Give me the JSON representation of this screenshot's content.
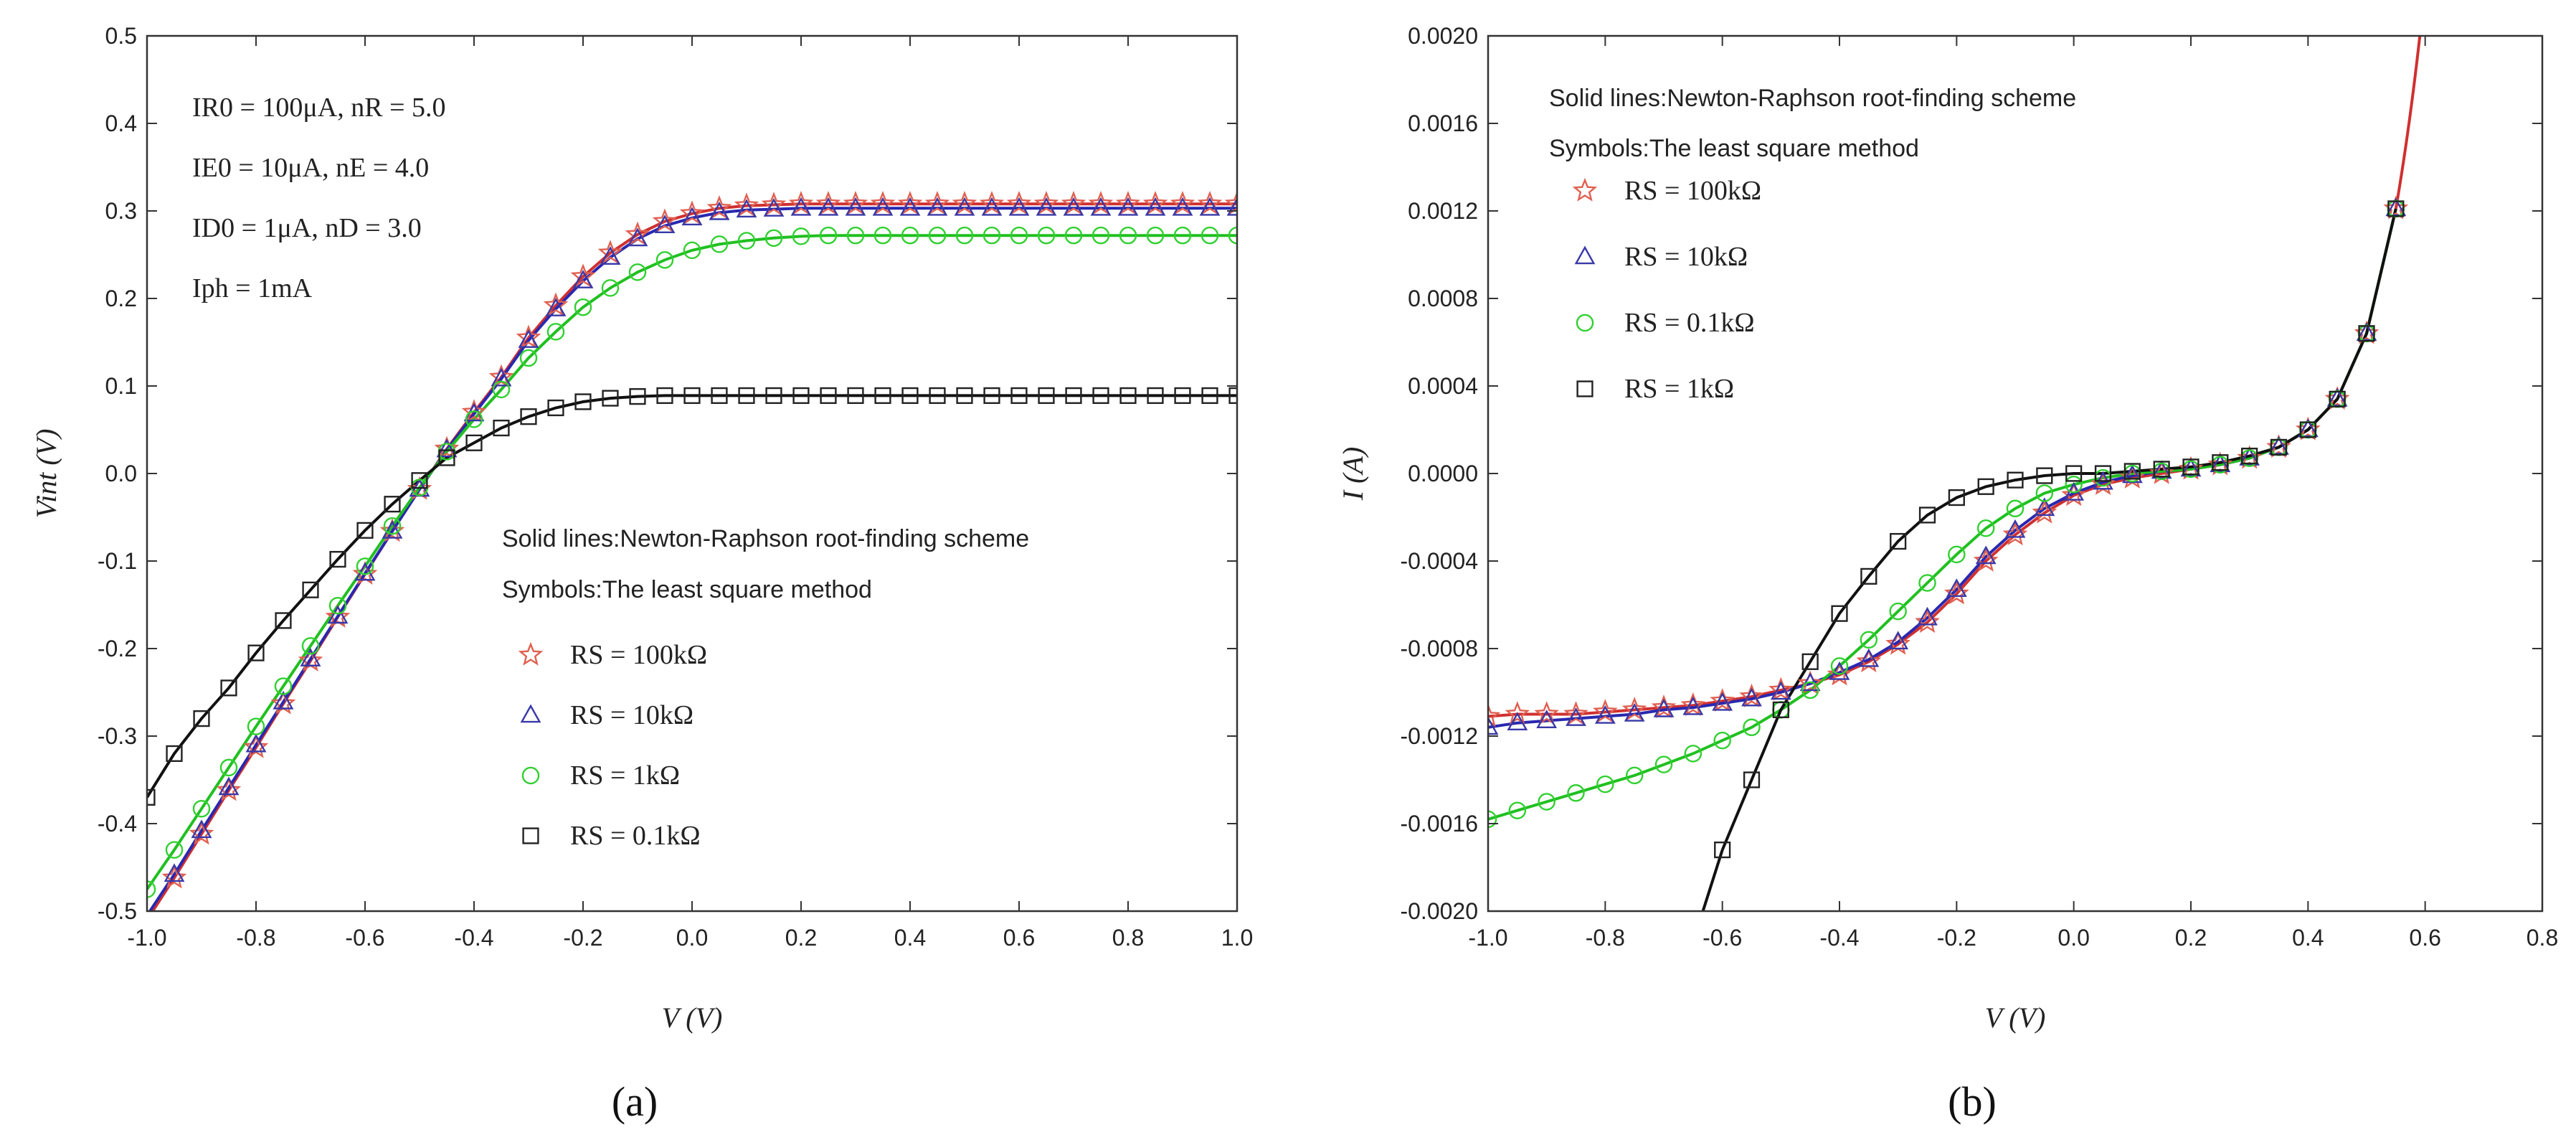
{
  "chart_data": [
    {
      "type": "line",
      "panel_label": "(a)",
      "title": "",
      "xlabel": "V (V)",
      "ylabel": "Vint (V)",
      "xlim": [
        -1.0,
        1.0
      ],
      "ylim": [
        -0.5,
        0.5
      ],
      "xticks": [
        "-1.0",
        "-0.8",
        "-0.6",
        "-0.4",
        "-0.2",
        "0.0",
        "0.2",
        "0.4",
        "0.6",
        "0.8",
        "1.0"
      ],
      "yticks": [
        "-0.5",
        "-0.4",
        "-0.3",
        "-0.2",
        "-0.1",
        "0.0",
        "0.1",
        "0.2",
        "0.3",
        "0.4",
        "0.5"
      ],
      "notes": [
        "Solid lines:Newton-Raphson root-finding scheme",
        "Symbols:The least square method"
      ],
      "annotations": [
        "IR0 = 100μA,  nR = 5.0",
        "IE0 = 10μA,   nE = 4.0",
        "ID0 = 1μA,    nD = 3.0",
        "Iph = 1mA"
      ],
      "legend_placement": "center-right",
      "series": [
        {
          "name": "RS = 100kΩ",
          "marker": "star",
          "color": "#e06050",
          "line_color": "#d03030",
          "x": [
            -1.0,
            -0.95,
            -0.9,
            -0.85,
            -0.8,
            -0.75,
            -0.7,
            -0.65,
            -0.6,
            -0.55,
            -0.5,
            -0.45,
            -0.4,
            -0.35,
            -0.3,
            -0.25,
            -0.2,
            -0.15,
            -0.1,
            -0.05,
            0.0,
            0.05,
            0.1,
            0.15,
            0.2,
            0.25,
            0.3,
            0.35,
            0.4,
            0.45,
            0.5,
            0.55,
            0.6,
            0.65,
            0.7,
            0.75,
            0.8,
            0.85,
            0.9,
            0.95,
            1.0
          ],
          "y": [
            -0.51,
            -0.462,
            -0.412,
            -0.362,
            -0.313,
            -0.263,
            -0.214,
            -0.164,
            -0.115,
            -0.066,
            -0.018,
            0.028,
            0.07,
            0.11,
            0.155,
            0.192,
            0.225,
            0.252,
            0.273,
            0.288,
            0.297,
            0.303,
            0.306,
            0.307,
            0.308,
            0.308,
            0.308,
            0.308,
            0.308,
            0.308,
            0.308,
            0.308,
            0.308,
            0.308,
            0.308,
            0.308,
            0.308,
            0.308,
            0.308,
            0.308,
            0.308
          ]
        },
        {
          "name": "RS = 10kΩ",
          "marker": "triangle",
          "color": "#3838a8",
          "line_color": "#2828b0",
          "x": [
            -1.0,
            -0.95,
            -0.9,
            -0.85,
            -0.8,
            -0.75,
            -0.7,
            -0.65,
            -0.6,
            -0.55,
            -0.5,
            -0.45,
            -0.4,
            -0.35,
            -0.3,
            -0.25,
            -0.2,
            -0.15,
            -0.1,
            -0.05,
            0.0,
            0.05,
            0.1,
            0.15,
            0.2,
            0.25,
            0.3,
            0.35,
            0.4,
            0.45,
            0.5,
            0.55,
            0.6,
            0.65,
            0.7,
            0.75,
            0.8,
            0.85,
            0.9,
            0.95,
            1.0
          ],
          "y": [
            -0.505,
            -0.458,
            -0.408,
            -0.359,
            -0.31,
            -0.261,
            -0.212,
            -0.163,
            -0.114,
            -0.066,
            -0.018,
            0.027,
            0.068,
            0.108,
            0.152,
            0.188,
            0.22,
            0.247,
            0.268,
            0.283,
            0.292,
            0.298,
            0.301,
            0.302,
            0.303,
            0.303,
            0.303,
            0.303,
            0.303,
            0.303,
            0.303,
            0.303,
            0.303,
            0.303,
            0.303,
            0.303,
            0.303,
            0.303,
            0.303,
            0.303,
            0.303
          ]
        },
        {
          "name": "RS = 1kΩ",
          "marker": "circle",
          "color": "#30d030",
          "line_color": "#20c020",
          "x": [
            -1.0,
            -0.95,
            -0.9,
            -0.85,
            -0.8,
            -0.75,
            -0.7,
            -0.65,
            -0.6,
            -0.55,
            -0.5,
            -0.45,
            -0.4,
            -0.35,
            -0.3,
            -0.25,
            -0.2,
            -0.15,
            -0.1,
            -0.05,
            0.0,
            0.05,
            0.1,
            0.15,
            0.2,
            0.25,
            0.3,
            0.35,
            0.4,
            0.45,
            0.5,
            0.55,
            0.6,
            0.65,
            0.7,
            0.75,
            0.8,
            0.85,
            0.9,
            0.95,
            1.0
          ],
          "y": [
            -0.475,
            -0.43,
            -0.383,
            -0.336,
            -0.289,
            -0.243,
            -0.197,
            -0.151,
            -0.106,
            -0.06,
            -0.016,
            0.025,
            0.062,
            0.096,
            0.132,
            0.162,
            0.19,
            0.212,
            0.23,
            0.244,
            0.255,
            0.262,
            0.266,
            0.269,
            0.271,
            0.272,
            0.272,
            0.272,
            0.272,
            0.272,
            0.272,
            0.272,
            0.272,
            0.272,
            0.272,
            0.272,
            0.272,
            0.272,
            0.272,
            0.272,
            0.272
          ]
        },
        {
          "name": "RS = 0.1kΩ",
          "marker": "square",
          "color": "#222222",
          "line_color": "#111111",
          "x": [
            -1.0,
            -0.95,
            -0.9,
            -0.85,
            -0.8,
            -0.75,
            -0.7,
            -0.65,
            -0.6,
            -0.55,
            -0.5,
            -0.45,
            -0.4,
            -0.35,
            -0.3,
            -0.25,
            -0.2,
            -0.15,
            -0.1,
            -0.05,
            0.0,
            0.05,
            0.1,
            0.15,
            0.2,
            0.25,
            0.3,
            0.35,
            0.4,
            0.45,
            0.5,
            0.55,
            0.6,
            0.65,
            0.7,
            0.75,
            0.8,
            0.85,
            0.9,
            0.95,
            1.0
          ],
          "y": [
            -0.37,
            -0.32,
            -0.28,
            -0.245,
            -0.205,
            -0.168,
            -0.133,
            -0.098,
            -0.065,
            -0.035,
            -0.008,
            0.018,
            0.035,
            0.052,
            0.065,
            0.075,
            0.082,
            0.086,
            0.088,
            0.089,
            0.089,
            0.089,
            0.089,
            0.089,
            0.089,
            0.089,
            0.089,
            0.089,
            0.089,
            0.089,
            0.089,
            0.089,
            0.089,
            0.089,
            0.089,
            0.089,
            0.089,
            0.089,
            0.089,
            0.089,
            0.089
          ]
        }
      ]
    },
    {
      "type": "line",
      "panel_label": "(b)",
      "title": "",
      "xlabel": "V (V)",
      "ylabel": "I (A)",
      "xlim": [
        -1.0,
        0.8
      ],
      "ylim": [
        -0.002,
        0.002
      ],
      "xticks": [
        "-1.0",
        "-0.8",
        "-0.6",
        "-0.4",
        "-0.2",
        "0.0",
        "0.2",
        "0.4",
        "0.6",
        "0.8"
      ],
      "yticks": [
        "-0.0020",
        "-0.0016",
        "-0.0012",
        "-0.0008",
        "-0.0004",
        "0.0000",
        "0.0004",
        "0.0008",
        "0.0012",
        "0.0016",
        "0.0020"
      ],
      "notes": [
        "Solid lines:Newton-Raphson root-finding scheme",
        "Symbols:The least square method"
      ],
      "legend_placement": "top-left",
      "series": [
        {
          "name": "RS = 100kΩ",
          "marker": "star",
          "color": "#e06050",
          "line_color": "#d03030",
          "x": [
            -1.0,
            -0.95,
            -0.9,
            -0.85,
            -0.8,
            -0.75,
            -0.7,
            -0.65,
            -0.6,
            -0.55,
            -0.5,
            -0.45,
            -0.4,
            -0.35,
            -0.3,
            -0.25,
            -0.2,
            -0.15,
            -0.1,
            -0.05,
            0.0,
            0.05,
            0.1,
            0.15,
            0.2,
            0.25,
            0.3,
            0.35,
            0.4,
            0.45,
            0.5,
            0.55
          ],
          "y": [
            -0.00111,
            -0.0011,
            -0.0011,
            -0.0011,
            -0.00109,
            -0.00108,
            -0.00107,
            -0.00106,
            -0.00104,
            -0.00102,
            -0.00099,
            -0.00096,
            -0.00092,
            -0.00086,
            -0.00078,
            -0.00068,
            -0.00055,
            -0.0004,
            -0.00028,
            -0.00018,
            -0.0001,
            -5e-05,
            -2e-05,
            0.0,
            2e-05,
            4e-05,
            7e-05,
            0.00012,
            0.0002,
            0.00034,
            0.00064,
            0.00121
          ]
        },
        {
          "name": "RS = 10kΩ",
          "marker": "triangle",
          "color": "#3838a8",
          "line_color": "#2828b0",
          "x": [
            -1.0,
            -0.95,
            -0.9,
            -0.85,
            -0.8,
            -0.75,
            -0.7,
            -0.65,
            -0.6,
            -0.55,
            -0.5,
            -0.45,
            -0.4,
            -0.35,
            -0.3,
            -0.25,
            -0.2,
            -0.15,
            -0.1,
            -0.05,
            0.0,
            0.05,
            0.1,
            0.15,
            0.2,
            0.25,
            0.3,
            0.35,
            0.4,
            0.45,
            0.5,
            0.55
          ],
          "y": [
            -0.00116,
            -0.00114,
            -0.00113,
            -0.00112,
            -0.00111,
            -0.0011,
            -0.00108,
            -0.00107,
            -0.00105,
            -0.00103,
            -0.001,
            -0.00096,
            -0.00091,
            -0.00085,
            -0.00077,
            -0.00066,
            -0.00053,
            -0.00038,
            -0.00026,
            -0.00016,
            -9e-05,
            -4e-05,
            -1e-05,
            1e-05,
            2e-05,
            4e-05,
            7e-05,
            0.00012,
            0.0002,
            0.00034,
            0.00064,
            0.00121
          ]
        },
        {
          "name": "RS = 0.1kΩ",
          "marker": "circle",
          "color": "#30d030",
          "line_color": "#20c020",
          "x": [
            -1.0,
            -0.95,
            -0.9,
            -0.85,
            -0.8,
            -0.75,
            -0.7,
            -0.65,
            -0.6,
            -0.55,
            -0.5,
            -0.45,
            -0.4,
            -0.35,
            -0.3,
            -0.25,
            -0.2,
            -0.15,
            -0.1,
            -0.05,
            0.0,
            0.05,
            0.1,
            0.15,
            0.2,
            0.25,
            0.3,
            0.35,
            0.4,
            0.45,
            0.5,
            0.55
          ],
          "y": [
            -0.00158,
            -0.00154,
            -0.0015,
            -0.00146,
            -0.00142,
            -0.00138,
            -0.00133,
            -0.00128,
            -0.00122,
            -0.00116,
            -0.00108,
            -0.00099,
            -0.00088,
            -0.00076,
            -0.00063,
            -0.0005,
            -0.00037,
            -0.00025,
            -0.00016,
            -9e-05,
            -5e-05,
            -2e-05,
            0.0,
            1e-05,
            2e-05,
            4e-05,
            7e-05,
            0.00012,
            0.0002,
            0.00034,
            0.00064,
            0.00121
          ]
        },
        {
          "name": "RS = 1kΩ",
          "marker": "square",
          "color": "#222222",
          "line_color": "#111111",
          "x": [
            -0.6,
            -0.55,
            -0.5,
            -0.45,
            -0.4,
            -0.35,
            -0.3,
            -0.25,
            -0.2,
            -0.15,
            -0.1,
            -0.05,
            0.0,
            0.05,
            0.1,
            0.15,
            0.2,
            0.25,
            0.3,
            0.35,
            0.4,
            0.45,
            0.5,
            0.55
          ],
          "y": [
            -0.00172,
            -0.0014,
            -0.00108,
            -0.00086,
            -0.00064,
            -0.00047,
            -0.00031,
            -0.00019,
            -0.00011,
            -6e-05,
            -3e-05,
            -1e-05,
            0.0,
            0.0,
            1e-05,
            2e-05,
            3e-05,
            5e-05,
            8e-05,
            0.00012,
            0.0002,
            0.00034,
            0.00064,
            0.00121
          ]
        }
      ]
    }
  ]
}
